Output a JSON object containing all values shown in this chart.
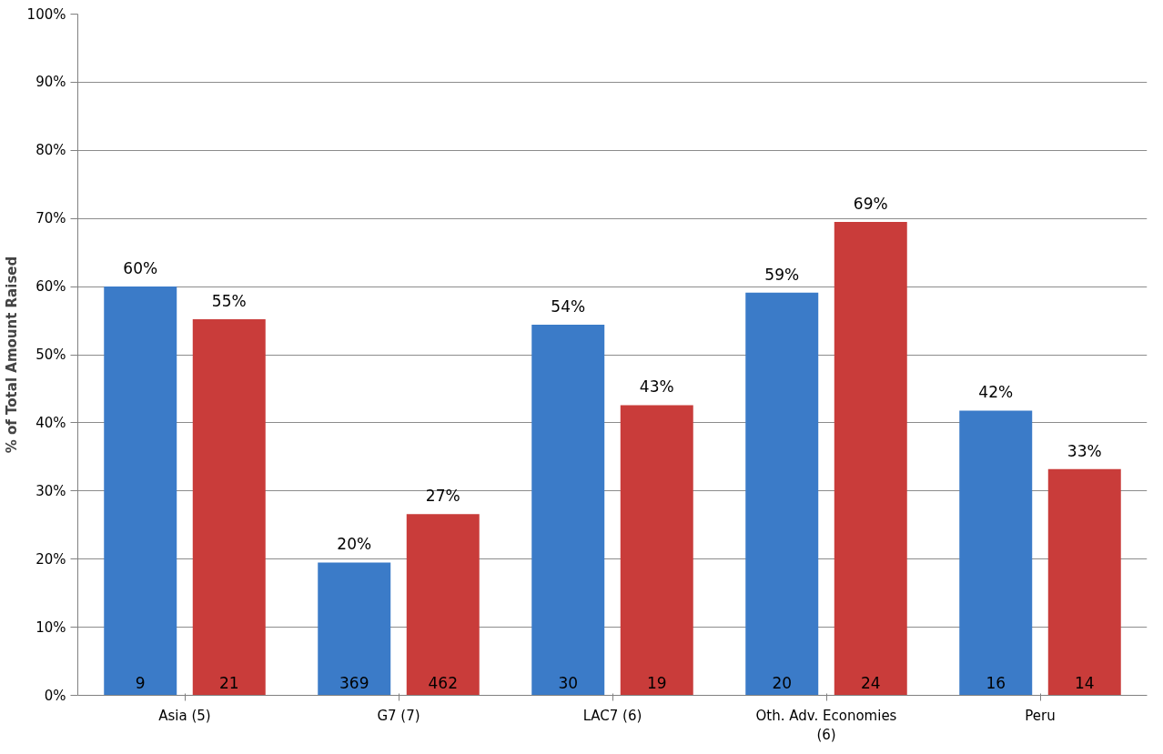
{
  "chart_data": {
    "type": "bar",
    "ylabel": "% of Total Amount Raised",
    "categories": [
      "Asia (5)",
      "G7 (7)",
      "LAC7 (6)",
      "Oth. Adv. Economies (6)",
      "Peru"
    ],
    "series": [
      {
        "color": "#3b7bc8",
        "values": [
          60.0,
          19.5,
          54.4,
          59.1,
          41.8
        ],
        "value_labels": [
          "60%",
          "20%",
          "54%",
          "59%",
          "42%"
        ]
      },
      {
        "color": "#c93c3a",
        "values": [
          55.2,
          26.6,
          42.6,
          69.5,
          33.2
        ],
        "value_labels": [
          "55%",
          "27%",
          "43%",
          "69%",
          "33%"
        ]
      }
    ],
    "ylim": [
      0,
      100
    ],
    "yticks": [
      {
        "value": 0,
        "label": "0%"
      },
      {
        "value": 10,
        "label": "10%"
      },
      {
        "value": 20,
        "label": "20%"
      },
      {
        "value": 30,
        "label": "30%"
      },
      {
        "value": 40,
        "label": "40%"
      },
      {
        "value": 50,
        "label": "50%"
      },
      {
        "value": 60,
        "label": "60%"
      },
      {
        "value": 70,
        "label": "70%"
      },
      {
        "value": 80,
        "label": "80%"
      },
      {
        "value": 90,
        "label": "90%"
      },
      {
        "value": 100,
        "label": "100%"
      }
    ],
    "grid": "y",
    "annotations": [
      "9",
      "21",
      "369",
      "462",
      "30",
      "19",
      "20",
      "24",
      "16",
      "14"
    ]
  }
}
